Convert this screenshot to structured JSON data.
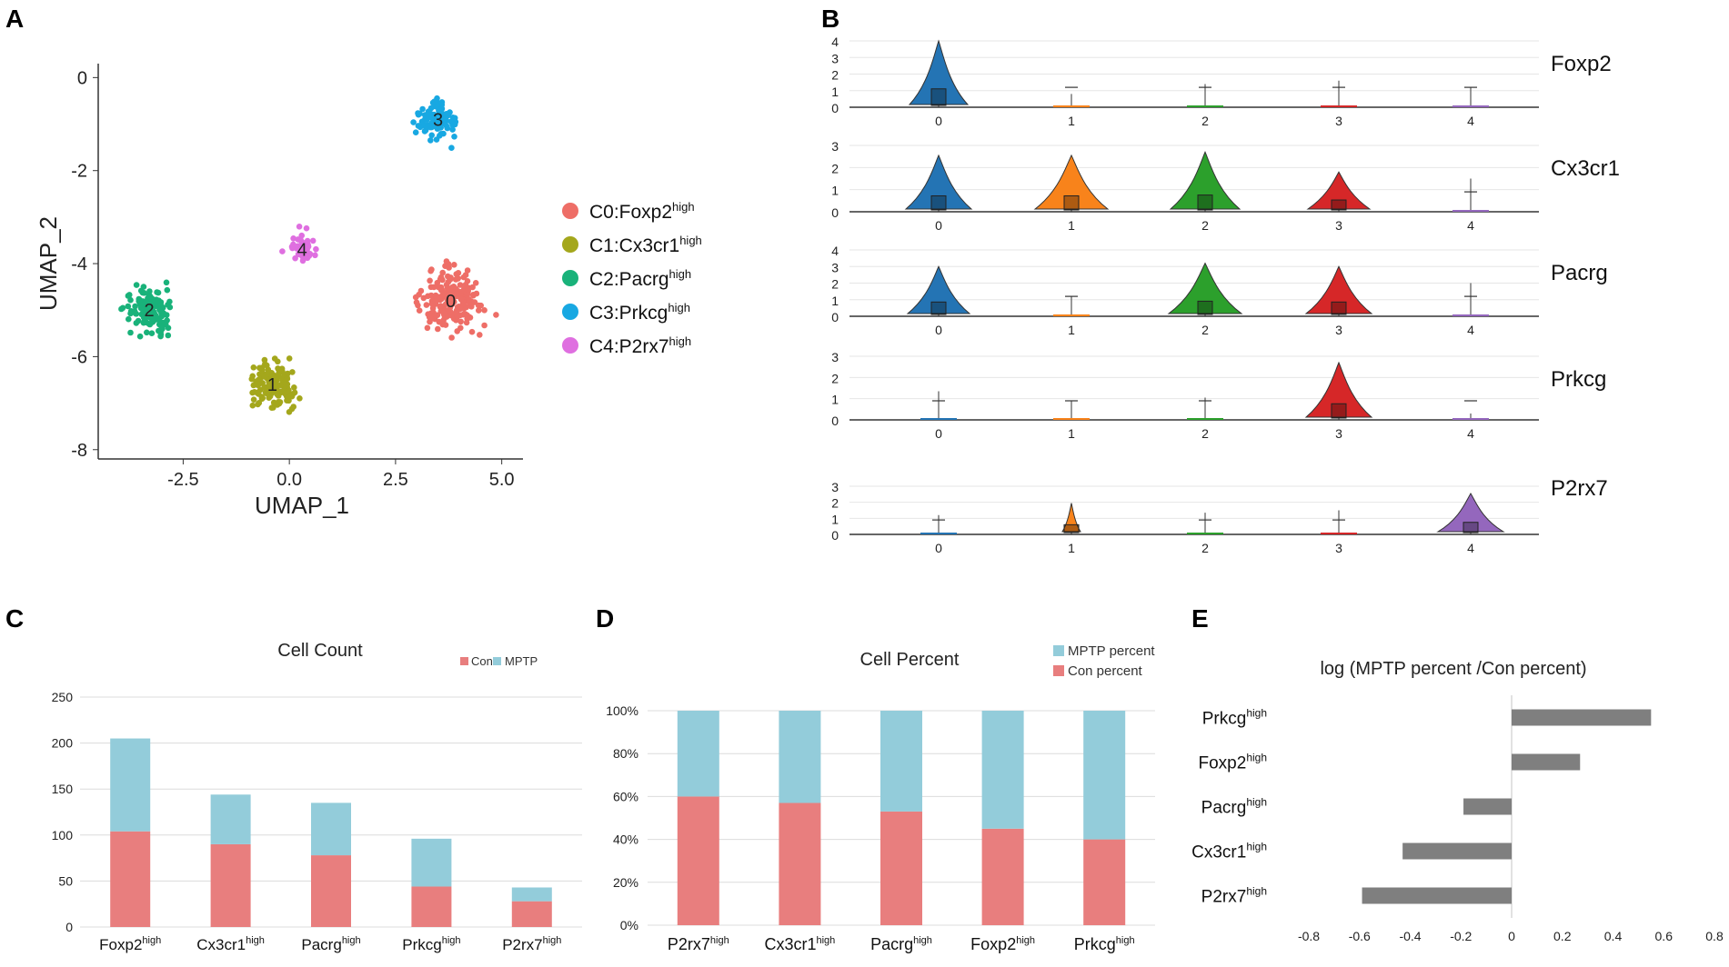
{
  "panels": {
    "A": "A",
    "B": "B",
    "C": "C",
    "D": "D",
    "E": "E"
  },
  "umap": {
    "xlabel": "UMAP_1",
    "ylabel": "UMAP_2",
    "xticks": [
      "-2.5",
      "0.0",
      "2.5",
      "5.0"
    ],
    "yticks": [
      "0",
      "-2",
      "-4",
      "-6",
      "-8"
    ],
    "xlim": [
      -4.5,
      5.5
    ],
    "ylim": [
      -8.2,
      0.3
    ],
    "clusters": [
      {
        "id": "0",
        "name": "C0:Foxp2",
        "sup": "high",
        "color": "#EE6E67",
        "cx": 3.8,
        "cy": -4.8,
        "sx": 1.0,
        "sy": 0.8,
        "n": 200
      },
      {
        "id": "1",
        "name": "C1:Cx3cr1",
        "sup": "high",
        "color": "#A4A71C",
        "cx": -0.4,
        "cy": -6.6,
        "sx": 0.65,
        "sy": 0.6,
        "n": 160
      },
      {
        "id": "2",
        "name": "C2:Pacrg",
        "sup": "high",
        "color": "#19B27A",
        "cx": -3.3,
        "cy": -5.0,
        "sx": 0.75,
        "sy": 0.6,
        "n": 130
      },
      {
        "id": "3",
        "name": "C3:Prkcg",
        "sup": "high",
        "color": "#18A8E2",
        "cx": 3.5,
        "cy": -0.9,
        "sx": 0.55,
        "sy": 0.5,
        "n": 105
      },
      {
        "id": "4",
        "name": "C4:P2rx7",
        "sup": "high",
        "color": "#DF6FE0",
        "cx": 0.3,
        "cy": -3.7,
        "sx": 0.45,
        "sy": 0.45,
        "n": 45
      }
    ]
  },
  "violin": {
    "genes": [
      {
        "name": "Foxp2",
        "yticks": [
          "4",
          "3",
          "2",
          "1",
          "0"
        ]
      },
      {
        "name": "Cx3cr1",
        "yticks": [
          "3",
          "2",
          "1",
          "0"
        ]
      },
      {
        "name": "Pacrg",
        "yticks": [
          "4",
          "3",
          "2",
          "1",
          "0"
        ]
      },
      {
        "name": "Prkcg",
        "yticks": [
          "3",
          "2",
          "1",
          "0"
        ]
      },
      {
        "name": "P2rx7",
        "yticks": [
          "3",
          "2",
          "1",
          "0"
        ]
      }
    ],
    "xticks": [
      "0",
      "1",
      "2",
      "3",
      "4"
    ],
    "colors": [
      "#2474B4",
      "#F8831B",
      "#2CA02C",
      "#D62728",
      "#9467BD"
    ]
  },
  "chart_data": [
    {
      "type": "bar",
      "title": "Cell Count",
      "categories": [
        "Foxp2",
        "Cx3cr1",
        "Pacrg",
        "Prkcg",
        "P2rx7"
      ],
      "cat_sup": "high",
      "ylim": [
        0,
        250
      ],
      "yticks": [
        "250",
        "200",
        "150",
        "100",
        "50",
        "0"
      ],
      "series": [
        {
          "name": "Con",
          "color": "#E87E7E",
          "values": [
            104,
            90,
            78,
            44,
            28
          ]
        },
        {
          "name": "MPTP",
          "color": "#93CCDA",
          "values": [
            101,
            54,
            57,
            52,
            15
          ]
        }
      ]
    },
    {
      "type": "bar",
      "title": "Cell Percent",
      "categories": [
        "P2rx7",
        "Cx3cr1",
        "Pacrg",
        "Foxp2",
        "Prkcg"
      ],
      "cat_sup": "high",
      "yticks": [
        "100%",
        "80%",
        "60%",
        "40%",
        "20%",
        "0%"
      ],
      "series": [
        {
          "name": "Con percent",
          "color": "#E87E7E",
          "values": [
            60,
            57,
            53,
            45,
            40
          ]
        },
        {
          "name": "MPTP percent",
          "color": "#93CCDA",
          "values": [
            40,
            43,
            47,
            55,
            60
          ]
        }
      ]
    },
    {
      "type": "bar",
      "title": "log (MPTP percent /Con percent)",
      "categories": [
        "Prkcg",
        "Foxp2",
        "Pacrg",
        "Cx3cr1",
        "P2rx7"
      ],
      "cat_sup": "high",
      "values": [
        0.55,
        0.27,
        -0.19,
        -0.43,
        -0.59
      ],
      "xlim": [
        -0.8,
        0.8
      ],
      "xticks": [
        "-0.8",
        "-0.6",
        "-0.4",
        "-0.2",
        "0",
        "0.2",
        "0.4",
        "0.6",
        "0.8"
      ],
      "color": "#7F7F7F"
    }
  ]
}
